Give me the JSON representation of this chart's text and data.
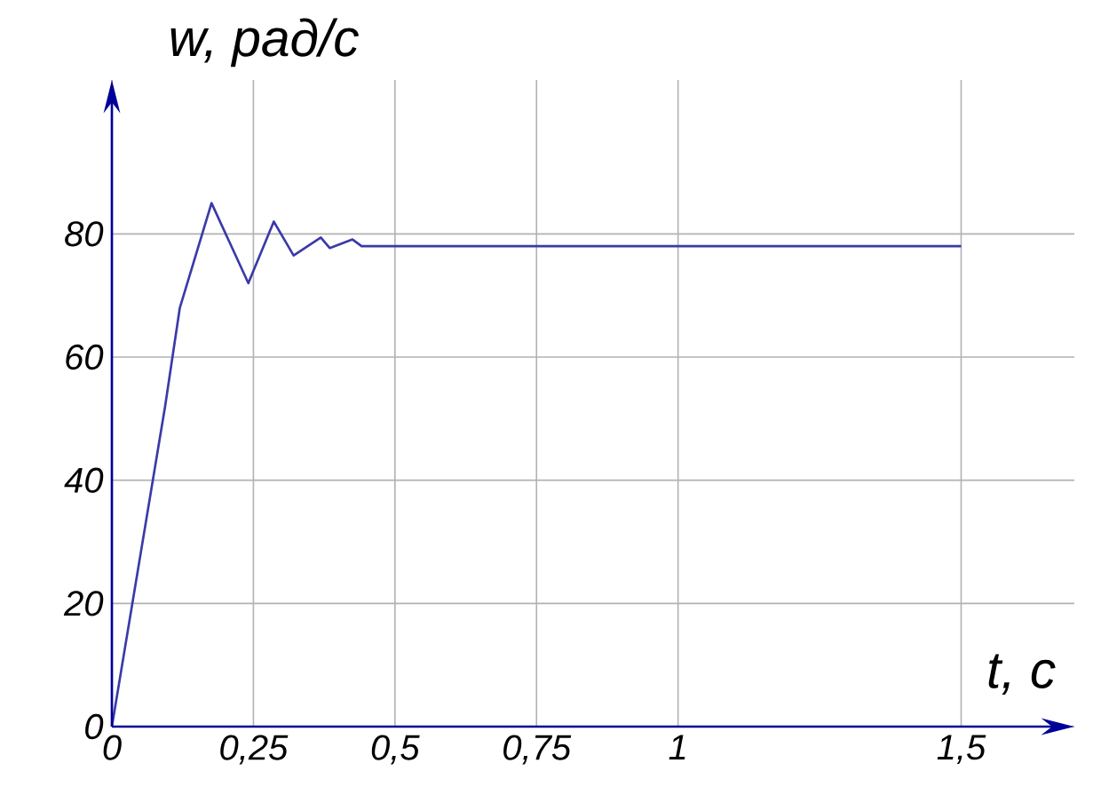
{
  "chart_data": {
    "type": "line",
    "xlabel": "t, с",
    "ylabel": "w, рад/с",
    "xlim": [
      0,
      1.7
    ],
    "ylim": [
      0,
      105
    ],
    "xticks": [
      0,
      {
        "value": 0.25,
        "label": "0,25"
      },
      {
        "value": 0.5,
        "label": "0,5"
      },
      {
        "value": 0.75,
        "label": "0,75"
      },
      1,
      {
        "value": 1.5,
        "label": "1,5"
      }
    ],
    "yticks": [
      0,
      20,
      40,
      60,
      80
    ],
    "grid": true,
    "marker": "none",
    "line_style": "solid",
    "series": [
      {
        "color": "#3a3aa8",
        "x": [
          0,
          0.094,
          0.12,
          0.176,
          0.241,
          0.286,
          0.321,
          0.369,
          0.385,
          0.425,
          0.441,
          1.5
        ],
        "values": [
          0,
          52,
          68,
          85,
          72,
          82,
          76.5,
          79.4,
          77.7,
          79.1,
          78,
          78
        ]
      }
    ]
  }
}
